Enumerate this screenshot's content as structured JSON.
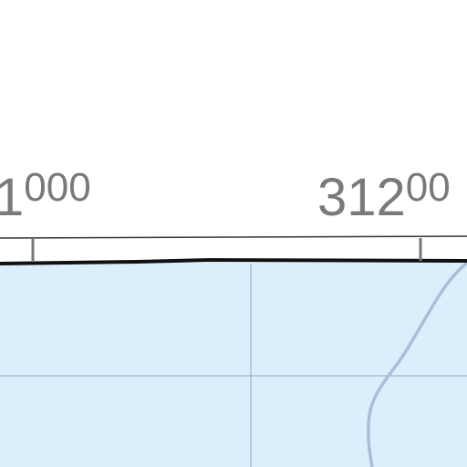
{
  "map": {
    "grid_labels": {
      "left": {
        "major": "1",
        "minor": "000"
      },
      "right": {
        "major": "312",
        "minor": "00"
      }
    },
    "colors": {
      "water": "#dbeefb",
      "frame": "#111111",
      "tick": "#777777",
      "grid": "#9fb4c6",
      "contour": "#a9bedc",
      "label": "#7a7a7a"
    }
  }
}
